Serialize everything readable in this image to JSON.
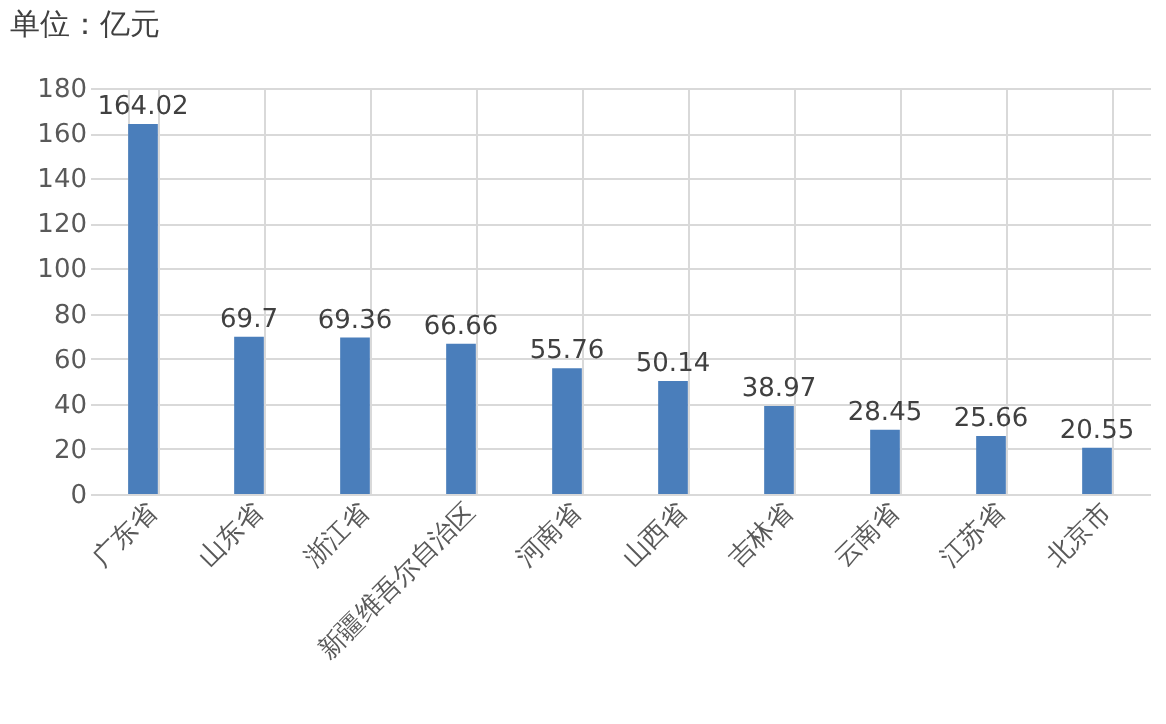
{
  "chart_data": {
    "type": "bar",
    "title": "单位：亿元",
    "categories": [
      "广东省",
      "山东省",
      "浙江省",
      "新疆维吾尔自治区",
      "河南省",
      "山西省",
      "吉林省",
      "云南省",
      "江苏省",
      "北京市"
    ],
    "values": [
      164.02,
      69.7,
      69.36,
      66.66,
      55.76,
      50.14,
      38.97,
      28.45,
      25.66,
      20.55
    ],
    "color": "#4a7ebb",
    "ylim": [
      0,
      180
    ],
    "yticks": [
      0,
      20,
      40,
      60,
      80,
      100,
      120,
      140,
      160,
      180
    ],
    "grid": true,
    "data_labels": true
  }
}
